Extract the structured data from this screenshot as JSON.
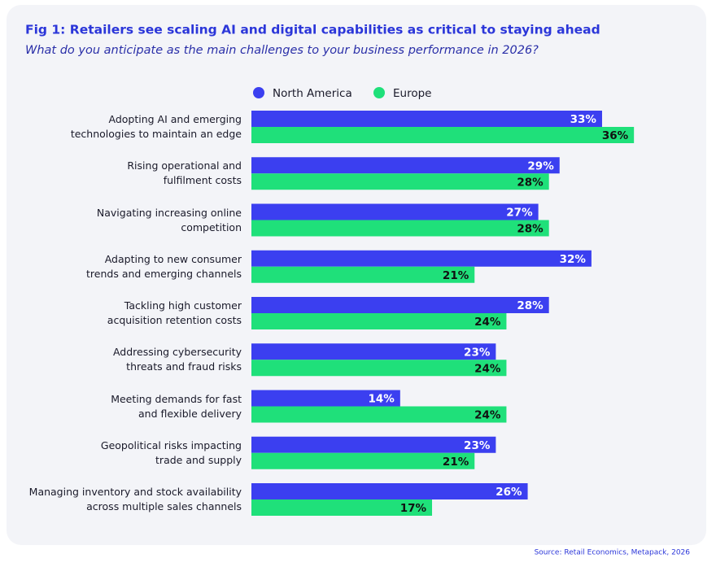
{
  "chart_data": {
    "type": "hbar",
    "title": "Fig 1: Retailers see scaling AI and digital capabilities as critical to staying ahead",
    "subtitle": "What do you anticipate as the main challenges to your business performance in 2026?",
    "source": "Source: Retail Economics, Metapack, 2026",
    "legend": "top",
    "categories": [
      "Adopting AI and emerging\ntechnologies to maintain an edge",
      "Rising operational and\nfulfilment costs",
      "Navigating increasing online\ncompetition",
      "Adapting to new consumer\ntrends and emerging channels",
      "Tackling high customer\nacquisition retention costs",
      "Addressing cybersecurity\nthreats and fraud risks",
      "Meeting demands for fast\nand flexible delivery",
      "Geopolitical risks impacting\ntrade and supply",
      "Managing inventory and stock availability\nacross multiple sales channels"
    ],
    "series": [
      {
        "name": "North America",
        "color": "#3b3ff0",
        "label_color": "#ffffff",
        "values": [
          33,
          29,
          27,
          32,
          28,
          23,
          14,
          23,
          26
        ],
        "value_labels": [
          "33%",
          "29%",
          "27%",
          "32%",
          "28%",
          "23%",
          "14%",
          "23%",
          "26%"
        ]
      },
      {
        "name": "Europe",
        "color": "#1fe07a",
        "label_color": "#111111",
        "values": [
          36,
          28,
          28,
          21,
          24,
          24,
          24,
          21,
          17
        ],
        "value_labels": [
          "36%",
          "28%",
          "28%",
          "21%",
          "24%",
          "24%",
          "24%",
          "21%",
          "17%"
        ]
      }
    ]
  }
}
